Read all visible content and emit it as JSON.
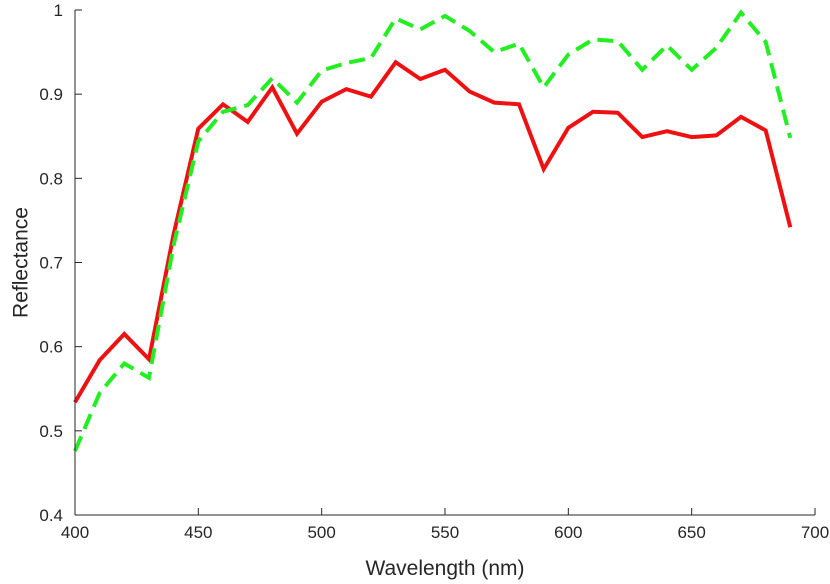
{
  "chart_data": {
    "type": "line",
    "title": "",
    "xlabel": "Wavelength (nm)",
    "ylabel": "Reflectance",
    "xlim": [
      400,
      700
    ],
    "ylim": [
      0.4,
      1
    ],
    "xticks": [
      400,
      450,
      500,
      550,
      600,
      650,
      700
    ],
    "yticks": [
      0.4,
      0.5,
      0.6,
      0.7,
      0.8,
      0.9,
      1
    ],
    "xtick_labels": [
      "400",
      "450",
      "500",
      "550",
      "600",
      "650",
      "700"
    ],
    "ytick_labels": [
      "0.4",
      "0.5",
      "0.6",
      "0.7",
      "0.8",
      "0.9",
      "1"
    ],
    "grid": false,
    "x": [
      400,
      410,
      420,
      430,
      440,
      450,
      460,
      470,
      480,
      490,
      500,
      510,
      520,
      530,
      540,
      550,
      560,
      570,
      580,
      590,
      600,
      610,
      620,
      630,
      640,
      650,
      660,
      670,
      680,
      690
    ],
    "series": [
      {
        "color": "#ee1111",
        "style": "solid",
        "values": [
          0.534,
          0.584,
          0.615,
          0.585,
          0.734,
          0.859,
          0.888,
          0.867,
          0.908,
          0.853,
          0.891,
          0.906,
          0.897,
          0.938,
          0.918,
          0.929,
          0.903,
          0.89,
          0.888,
          0.811,
          0.86,
          0.879,
          0.878,
          0.849,
          0.856,
          0.849,
          0.851,
          0.873,
          0.857,
          0.742
        ]
      },
      {
        "color": "#22ee22",
        "style": "dashed",
        "values": [
          0.476,
          0.545,
          0.58,
          0.563,
          0.721,
          0.844,
          0.879,
          0.887,
          0.919,
          0.89,
          0.928,
          0.937,
          0.943,
          0.99,
          0.977,
          0.993,
          0.975,
          0.95,
          0.96,
          0.908,
          0.947,
          0.965,
          0.963,
          0.929,
          0.958,
          0.929,
          0.955,
          0.997,
          0.962,
          0.848
        ]
      }
    ]
  }
}
